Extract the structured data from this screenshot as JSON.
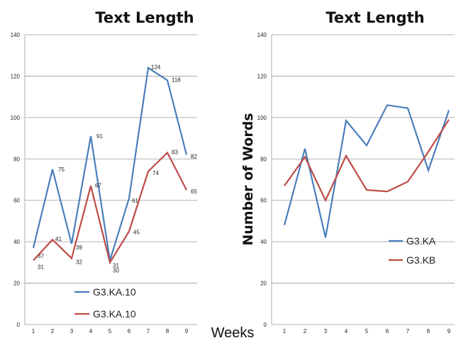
{
  "chart_data": [
    {
      "type": "line",
      "title": "Text Length",
      "xlabel": "Weeks",
      "ylabel": "",
      "ylim": [
        0,
        140
      ],
      "yticks": [
        0,
        20,
        40,
        60,
        80,
        100,
        120,
        140
      ],
      "x": [
        1,
        2,
        3,
        4,
        5,
        6,
        7,
        8,
        9
      ],
      "grid": true,
      "legend_position": "bottom-center",
      "series": [
        {
          "name": "G3.KA.10",
          "color": "#4a7ebb",
          "values": [
            37,
            75,
            39,
            91,
            31,
            61,
            124,
            118,
            82
          ],
          "labels": true
        },
        {
          "name": "G3.KA.10",
          "color": "#be4b48",
          "values": [
            31,
            41,
            32,
            67,
            30,
            45,
            74,
            83,
            65
          ],
          "labels": true
        }
      ]
    },
    {
      "type": "line",
      "title": "Text Length",
      "xlabel": "",
      "ylabel": "Number of Words",
      "ylim": [
        0,
        140
      ],
      "yticks": [
        0,
        20,
        40,
        60,
        80,
        100,
        120,
        140
      ],
      "x": [
        1,
        2,
        3,
        4,
        5,
        6,
        7,
        8,
        9
      ],
      "grid": true,
      "legend_position": "right",
      "series": [
        {
          "name": "G3.KA",
          "color": "#4a7ebb",
          "values": [
            48,
            85,
            42,
            98.5,
            86.5,
            106,
            104.5,
            74.5,
            103.5
          ],
          "labels": false
        },
        {
          "name": "G3.KB",
          "color": "#be4b48",
          "values": [
            67,
            81,
            60,
            81.5,
            65,
            64.3,
            69,
            83.5,
            99
          ],
          "labels": false
        }
      ]
    }
  ]
}
